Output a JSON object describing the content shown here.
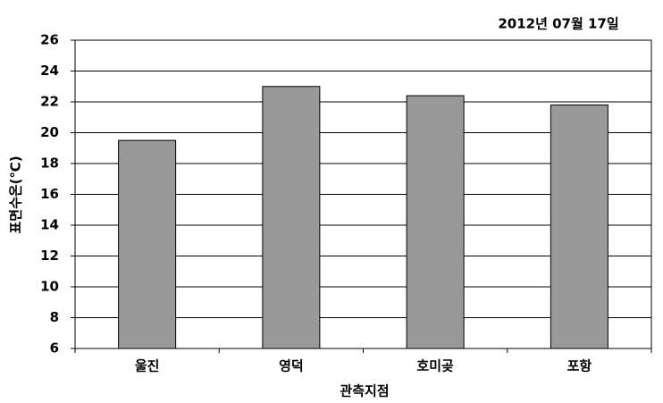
{
  "chart_data": {
    "type": "bar",
    "title": "2012년 07월 17일",
    "x_label": "관측지점",
    "y_label": "표면수온(℃)",
    "categories": [
      "울진",
      "영덕",
      "호미곶",
      "포항"
    ],
    "values": [
      19.5,
      23.0,
      22.4,
      21.8
    ],
    "color": "#999999",
    "ylim": [
      6,
      26
    ],
    "yticks": [
      6,
      8,
      10,
      12,
      14,
      16,
      18,
      20,
      22,
      24,
      26
    ],
    "grid": true
  }
}
